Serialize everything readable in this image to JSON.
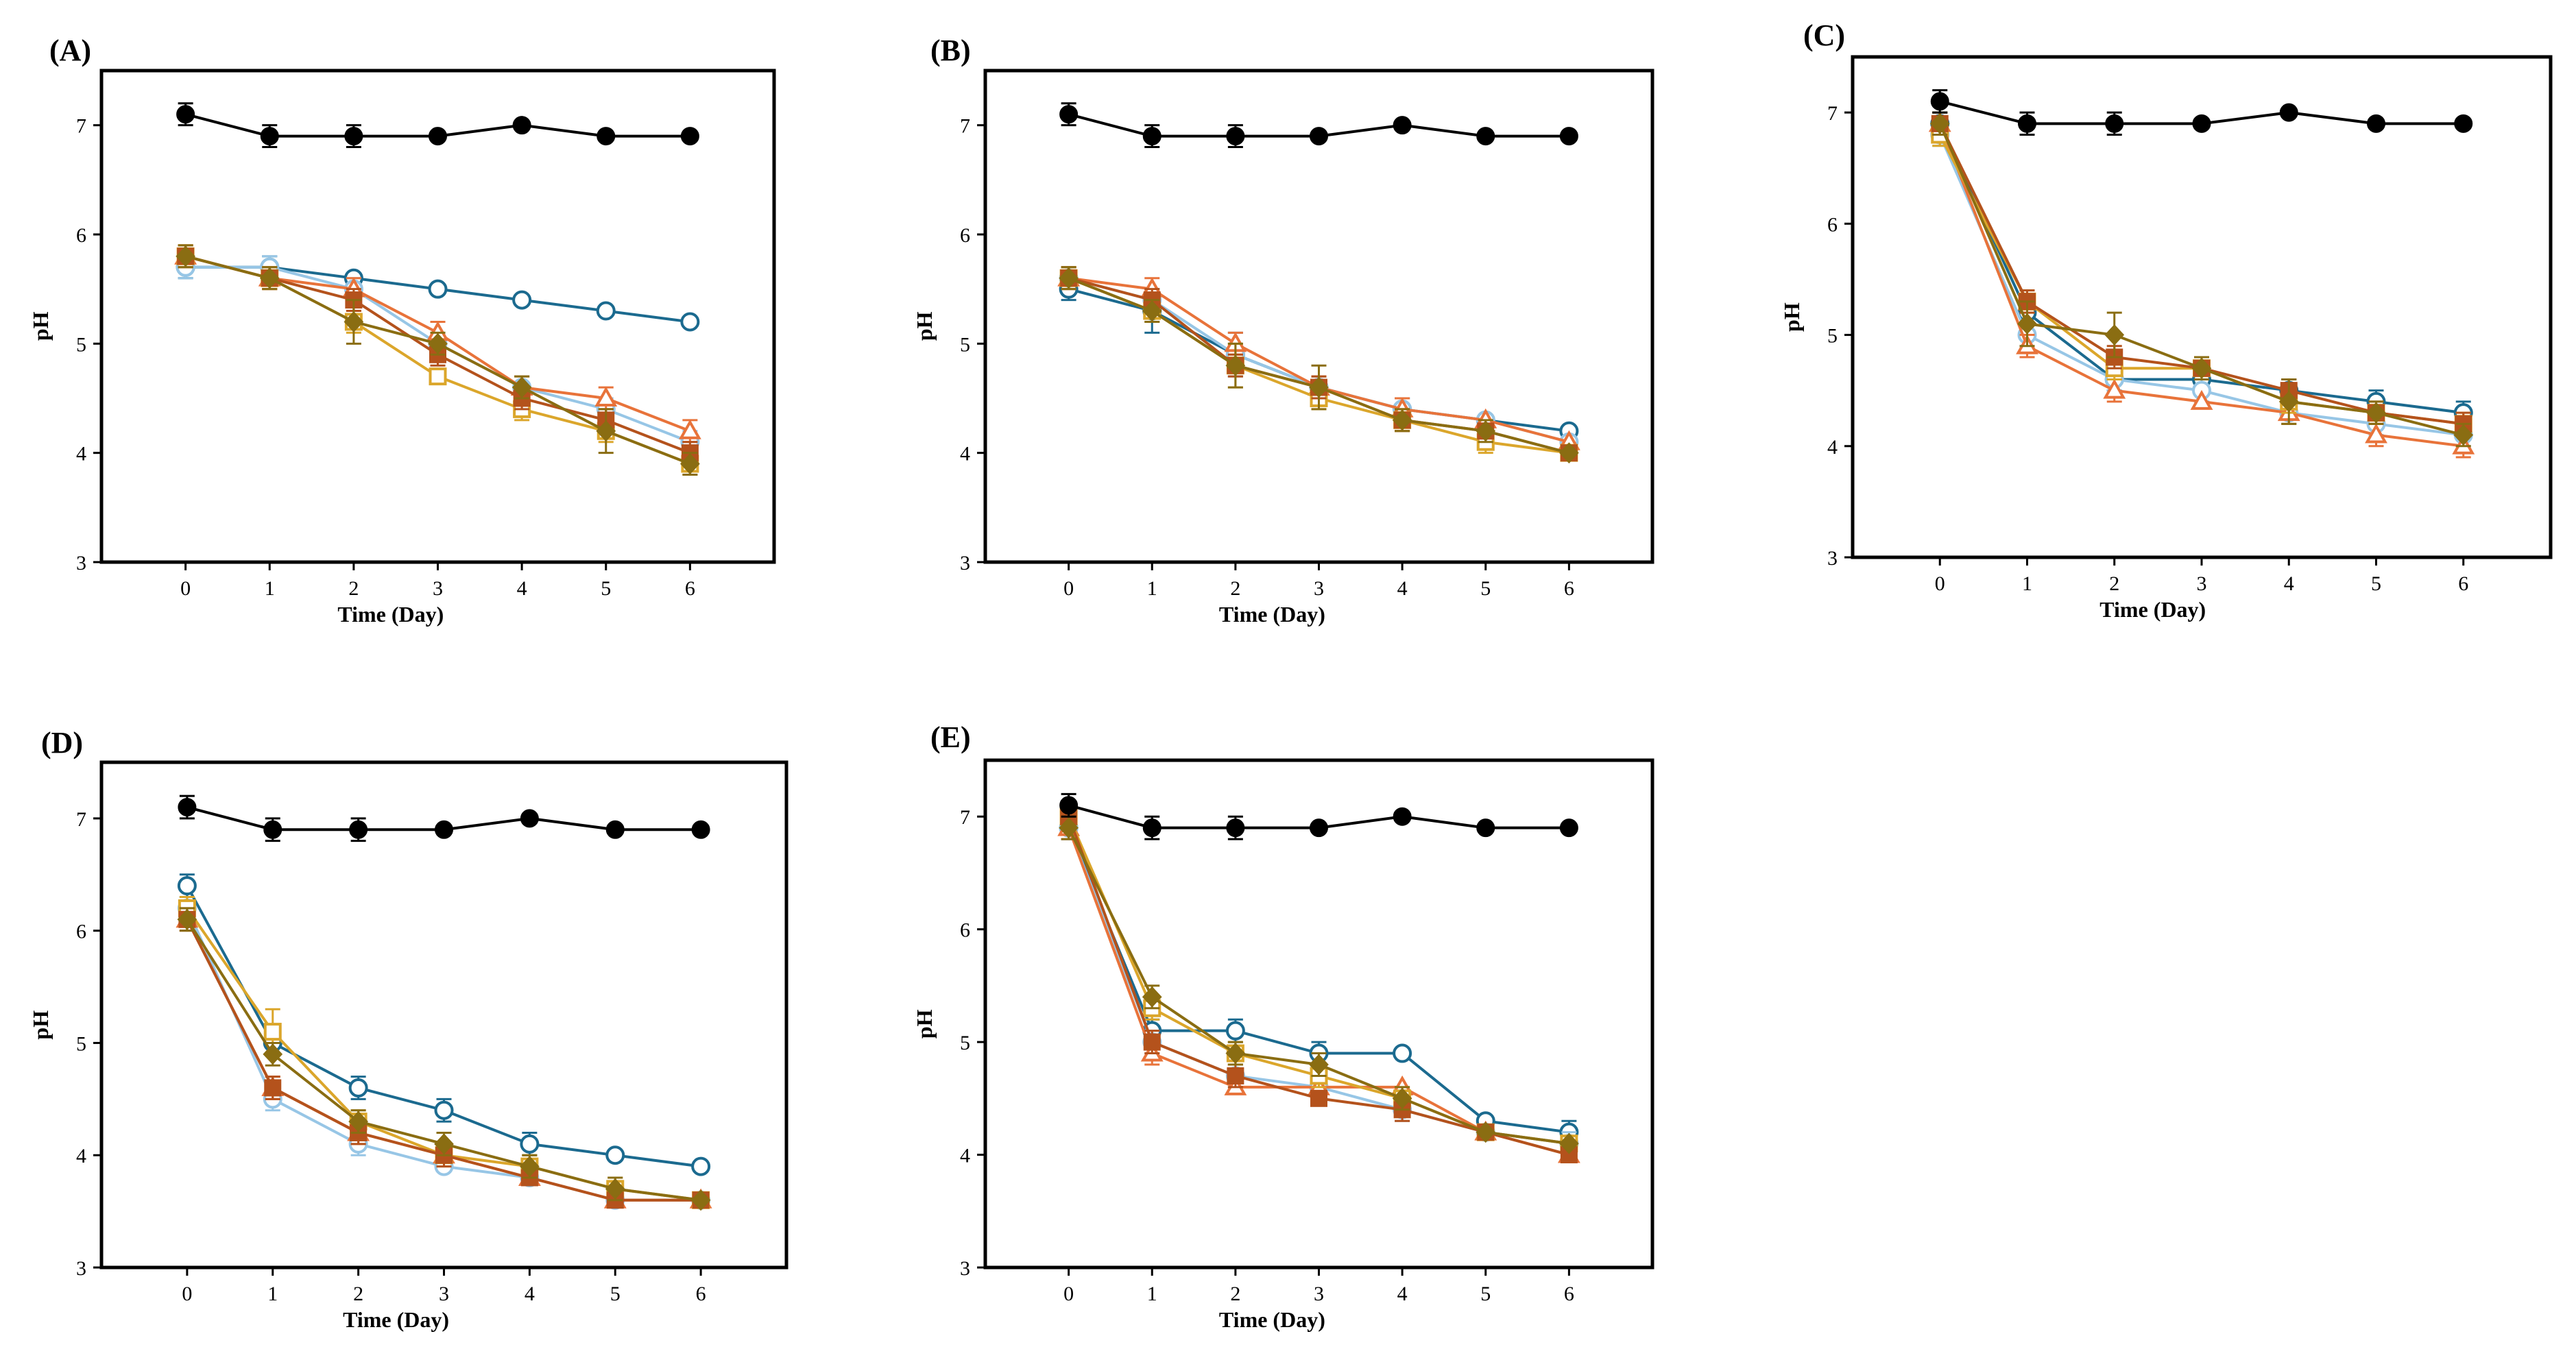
{
  "figure": {
    "colors": {
      "control": "#000000",
      "s1": "#1b6a8f",
      "s2": "#97c6e6",
      "s3": "#e8733a",
      "s4": "#dba62b",
      "s5": "#b4521c",
      "s6": "#8a6d12"
    }
  },
  "chart_data": [
    {
      "type": "line",
      "panel_label": "(A)",
      "xlabel": "Time (Day)",
      "ylabel": "pH",
      "x": [
        0,
        1,
        2,
        3,
        4,
        5,
        6
      ],
      "xticks": [
        "0",
        "1",
        "2",
        "3",
        "4",
        "5",
        "6"
      ],
      "yticks": [
        "3",
        "4",
        "5",
        "6",
        "7"
      ],
      "ylim": [
        3,
        7.5
      ],
      "xlim": [
        -1,
        7
      ],
      "series": [
        {
          "key": "control",
          "marker": "filled-circle",
          "values": [
            7.1,
            6.9,
            6.9,
            6.9,
            7.0,
            6.9,
            6.9
          ],
          "err": [
            0.1,
            0.1,
            0.1,
            0,
            0,
            0,
            0
          ]
        },
        {
          "key": "s1",
          "marker": "open-circle",
          "values": [
            5.7,
            5.7,
            5.6,
            5.5,
            5.4,
            5.3,
            5.2
          ],
          "err": [
            0.1,
            0.1,
            0,
            0,
            0,
            0,
            0
          ]
        },
        {
          "key": "s2",
          "marker": "open-circle",
          "values": [
            5.7,
            5.7,
            5.5,
            5.0,
            4.6,
            4.4,
            4.1
          ],
          "err": [
            0.1,
            0.1,
            0.1,
            0.1,
            0.1,
            0.1,
            0.1
          ]
        },
        {
          "key": "s3",
          "marker": "open-triangle",
          "values": [
            5.8,
            5.6,
            5.5,
            5.1,
            4.6,
            4.5,
            4.2
          ],
          "err": [
            0.1,
            0.1,
            0.1,
            0.1,
            0.1,
            0.1,
            0.1
          ]
        },
        {
          "key": "s4",
          "marker": "open-square",
          "values": [
            5.8,
            5.6,
            5.2,
            4.7,
            4.4,
            4.2,
            3.9
          ],
          "err": [
            0.1,
            0.1,
            0.1,
            0,
            0.1,
            0.1,
            0.1
          ]
        },
        {
          "key": "s5",
          "marker": "filled-square",
          "values": [
            5.8,
            5.6,
            5.4,
            4.9,
            4.5,
            4.3,
            4.0
          ],
          "err": [
            0.1,
            0.1,
            0.1,
            0.1,
            0.1,
            0.1,
            0.1
          ]
        },
        {
          "key": "s6",
          "marker": "filled-diamond",
          "values": [
            5.8,
            5.6,
            5.2,
            5.0,
            4.6,
            4.2,
            3.9
          ],
          "err": [
            0.1,
            0.1,
            0.2,
            0.1,
            0.1,
            0.2,
            0.1
          ]
        }
      ]
    },
    {
      "type": "line",
      "panel_label": "(B)",
      "xlabel": "Time (Day)",
      "ylabel": "pH",
      "x": [
        0,
        1,
        2,
        3,
        4,
        5,
        6
      ],
      "xticks": [
        "0",
        "1",
        "2",
        "3",
        "4",
        "5",
        "6"
      ],
      "yticks": [
        "3",
        "4",
        "5",
        "6",
        "7"
      ],
      "ylim": [
        3,
        7.5
      ],
      "xlim": [
        -1,
        7
      ],
      "series": [
        {
          "key": "control",
          "marker": "filled-circle",
          "values": [
            7.1,
            6.9,
            6.9,
            6.9,
            7.0,
            6.9,
            6.9
          ],
          "err": [
            0.1,
            0.1,
            0.1,
            0,
            0,
            0,
            0
          ]
        },
        {
          "key": "s1",
          "marker": "open-circle",
          "values": [
            5.5,
            5.3,
            4.9,
            4.6,
            4.4,
            4.3,
            4.2
          ],
          "err": [
            0.1,
            0.2,
            0.2,
            0.1,
            0.1,
            0,
            0
          ]
        },
        {
          "key": "s2",
          "marker": "open-circle",
          "values": [
            5.6,
            5.4,
            4.9,
            4.6,
            4.4,
            4.3,
            4.1
          ],
          "err": [
            0.1,
            0.1,
            0.1,
            0.1,
            0.1,
            0,
            0
          ]
        },
        {
          "key": "s3",
          "marker": "open-triangle",
          "values": [
            5.6,
            5.5,
            5.0,
            4.6,
            4.4,
            4.3,
            4.1
          ],
          "err": [
            0.1,
            0.1,
            0.1,
            0.1,
            0.1,
            0,
            0
          ]
        },
        {
          "key": "s4",
          "marker": "open-square",
          "values": [
            5.6,
            5.3,
            4.8,
            4.5,
            4.3,
            4.1,
            4.0
          ],
          "err": [
            0.1,
            0.1,
            0.2,
            0.1,
            0.1,
            0.1,
            0
          ]
        },
        {
          "key": "s5",
          "marker": "filled-square",
          "values": [
            5.6,
            5.4,
            4.8,
            4.6,
            4.3,
            4.2,
            4.0
          ],
          "err": [
            0.1,
            0.1,
            0.1,
            0.1,
            0.1,
            0,
            0
          ]
        },
        {
          "key": "s6",
          "marker": "filled-diamond",
          "values": [
            5.6,
            5.3,
            4.8,
            4.6,
            4.3,
            4.2,
            4.0
          ],
          "err": [
            0.1,
            0.1,
            0.2,
            0.2,
            0.1,
            0.1,
            0
          ]
        }
      ]
    },
    {
      "type": "line",
      "panel_label": "(C)",
      "xlabel": "Time (Day)",
      "ylabel": "pH",
      "x": [
        0,
        1,
        2,
        3,
        4,
        5,
        6
      ],
      "xticks": [
        "0",
        "1",
        "2",
        "3",
        "4",
        "5",
        "6"
      ],
      "yticks": [
        "3",
        "4",
        "5",
        "6",
        "7"
      ],
      "ylim": [
        3,
        7.5
      ],
      "xlim": [
        -1,
        7
      ],
      "series": [
        {
          "key": "control",
          "marker": "filled-circle",
          "values": [
            7.1,
            6.9,
            6.9,
            6.9,
            7.0,
            6.9,
            6.9
          ],
          "err": [
            0.1,
            0.1,
            0.1,
            0,
            0,
            0,
            0
          ]
        },
        {
          "key": "s1",
          "marker": "open-circle",
          "values": [
            6.9,
            5.2,
            4.6,
            4.6,
            4.5,
            4.4,
            4.3
          ],
          "err": [
            0.1,
            0.1,
            0.1,
            0.2,
            0.1,
            0.1,
            0.1
          ]
        },
        {
          "key": "s2",
          "marker": "open-circle",
          "values": [
            6.8,
            5.0,
            4.6,
            4.5,
            4.3,
            4.2,
            4.1
          ],
          "err": [
            0.1,
            0.1,
            0.1,
            0.1,
            0.1,
            0.1,
            0.1
          ]
        },
        {
          "key": "s3",
          "marker": "open-triangle",
          "values": [
            6.9,
            4.9,
            4.5,
            4.4,
            4.3,
            4.1,
            4.0
          ],
          "err": [
            0.1,
            0.1,
            0.1,
            0,
            0.1,
            0.1,
            0.1
          ]
        },
        {
          "key": "s4",
          "marker": "open-square",
          "values": [
            6.8,
            5.3,
            4.7,
            4.7,
            4.4,
            4.3,
            4.2
          ],
          "err": [
            0.1,
            0.1,
            0.1,
            0.1,
            0.1,
            0.1,
            0.1
          ]
        },
        {
          "key": "s5",
          "marker": "filled-square",
          "values": [
            6.9,
            5.3,
            4.8,
            4.7,
            4.5,
            4.3,
            4.2
          ],
          "err": [
            0.1,
            0.1,
            0.1,
            0.1,
            0.1,
            0.1,
            0.1
          ]
        },
        {
          "key": "s6",
          "marker": "filled-diamond",
          "values": [
            6.9,
            5.1,
            5.0,
            4.7,
            4.4,
            4.3,
            4.1
          ],
          "err": [
            0.1,
            0.2,
            0.2,
            0.1,
            0.2,
            0.1,
            0.1
          ]
        }
      ]
    },
    {
      "type": "line",
      "panel_label": "(D)",
      "xlabel": "Time (Day)",
      "ylabel": "pH",
      "x": [
        0,
        1,
        2,
        3,
        4,
        5,
        6
      ],
      "xticks": [
        "0",
        "1",
        "2",
        "3",
        "4",
        "5",
        "6"
      ],
      "yticks": [
        "3",
        "4",
        "5",
        "6",
        "7"
      ],
      "ylim": [
        3,
        7.5
      ],
      "xlim": [
        -1,
        7
      ],
      "series": [
        {
          "key": "control",
          "marker": "filled-circle",
          "values": [
            7.1,
            6.9,
            6.9,
            6.9,
            7.0,
            6.9,
            6.9
          ],
          "err": [
            0.1,
            0.1,
            0.1,
            0,
            0,
            0,
            0
          ]
        },
        {
          "key": "s1",
          "marker": "open-circle",
          "values": [
            6.4,
            5.0,
            4.6,
            4.4,
            4.1,
            4.0,
            3.9
          ],
          "err": [
            0.1,
            0.1,
            0.1,
            0.1,
            0.1,
            0,
            0
          ]
        },
        {
          "key": "s2",
          "marker": "open-circle",
          "values": [
            6.2,
            4.5,
            4.1,
            3.9,
            3.8,
            3.6,
            3.6
          ],
          "err": [
            0.1,
            0.1,
            0.1,
            0,
            0,
            0,
            0
          ]
        },
        {
          "key": "s3",
          "marker": "open-triangle",
          "values": [
            6.1,
            4.6,
            4.2,
            4.0,
            3.8,
            3.6,
            3.6
          ],
          "err": [
            0.1,
            0.1,
            0.1,
            0,
            0,
            0,
            0
          ]
        },
        {
          "key": "s4",
          "marker": "open-square",
          "values": [
            6.2,
            5.1,
            4.3,
            4.0,
            3.9,
            3.7,
            3.6
          ],
          "err": [
            0.1,
            0.2,
            0.1,
            0.1,
            0.1,
            0.1,
            0
          ]
        },
        {
          "key": "s5",
          "marker": "filled-square",
          "values": [
            6.1,
            4.6,
            4.2,
            4.0,
            3.8,
            3.6,
            3.6
          ],
          "err": [
            0.1,
            0.1,
            0.1,
            0.1,
            0,
            0,
            0
          ]
        },
        {
          "key": "s6",
          "marker": "filled-diamond",
          "values": [
            6.1,
            4.9,
            4.3,
            4.1,
            3.9,
            3.7,
            3.6
          ],
          "err": [
            0.1,
            0.1,
            0.1,
            0.1,
            0.1,
            0.1,
            0
          ]
        }
      ]
    },
    {
      "type": "line",
      "panel_label": "(E)",
      "xlabel": "Time (Day)",
      "ylabel": "pH",
      "x": [
        0,
        1,
        2,
        3,
        4,
        5,
        6
      ],
      "xticks": [
        "0",
        "1",
        "2",
        "3",
        "4",
        "5",
        "6"
      ],
      "yticks": [
        "3",
        "4",
        "5",
        "6",
        "7"
      ],
      "ylim": [
        3,
        7.5
      ],
      "xlim": [
        -1,
        7
      ],
      "series": [
        {
          "key": "control",
          "marker": "filled-circle",
          "values": [
            7.1,
            6.9,
            6.9,
            6.9,
            7.0,
            6.9,
            6.9
          ],
          "err": [
            0.1,
            0.1,
            0.1,
            0,
            0,
            0,
            0
          ]
        },
        {
          "key": "s1",
          "marker": "open-circle",
          "values": [
            6.9,
            5.1,
            5.1,
            4.9,
            4.9,
            4.3,
            4.2
          ],
          "err": [
            0.1,
            0.1,
            0.1,
            0.1,
            0,
            0,
            0.1
          ]
        },
        {
          "key": "s2",
          "marker": "open-circle",
          "values": [
            6.9,
            5.0,
            4.7,
            4.6,
            4.4,
            4.2,
            4.1
          ],
          "err": [
            0.1,
            0.1,
            0.1,
            0.1,
            0.1,
            0,
            0.1
          ]
        },
        {
          "key": "s3",
          "marker": "open-triangle",
          "values": [
            6.9,
            4.9,
            4.6,
            4.6,
            4.6,
            4.2,
            4.0
          ],
          "err": [
            0.1,
            0.1,
            0,
            0,
            0,
            0,
            0
          ]
        },
        {
          "key": "s4",
          "marker": "open-square",
          "values": [
            7.0,
            5.3,
            4.9,
            4.7,
            4.5,
            4.2,
            4.1
          ],
          "err": [
            0.1,
            0.1,
            0.1,
            0.1,
            0.1,
            0,
            0
          ]
        },
        {
          "key": "s5",
          "marker": "filled-square",
          "values": [
            7.0,
            5.0,
            4.7,
            4.5,
            4.4,
            4.2,
            4.0
          ],
          "err": [
            0.1,
            0.1,
            0.1,
            0,
            0.1,
            0,
            0
          ]
        },
        {
          "key": "s6",
          "marker": "filled-diamond",
          "values": [
            6.9,
            5.4,
            4.9,
            4.8,
            4.5,
            4.2,
            4.1
          ],
          "err": [
            0.1,
            0.1,
            0.1,
            0.1,
            0.1,
            0,
            0
          ]
        }
      ]
    }
  ]
}
